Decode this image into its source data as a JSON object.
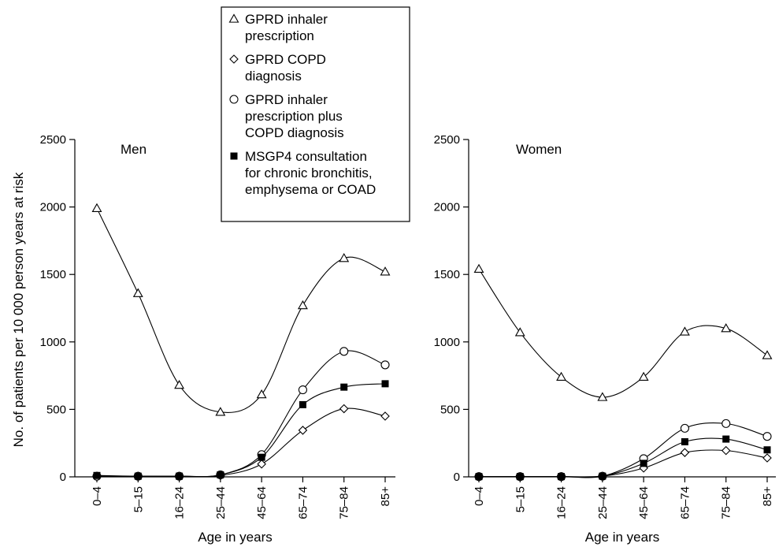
{
  "chart_data": {
    "type": "line",
    "ylabel": "No. of patients per 10 000 person years at risk",
    "xlabel": "Age in years",
    "categories": [
      "0–4",
      "5–15",
      "16–24",
      "25–44",
      "45–64",
      "65–74",
      "75–84",
      "85+"
    ],
    "ylim": [
      0,
      2500
    ],
    "yticks": [
      0,
      500,
      1000,
      1500,
      2000,
      2500
    ],
    "grid": false,
    "legend": {
      "placement": "top-center",
      "entries": [
        {
          "marker": "triangle-open",
          "lines": [
            "GPRD inhaler",
            "prescription"
          ]
        },
        {
          "marker": "diamond-open",
          "lines": [
            "GPRD COPD",
            "diagnosis"
          ]
        },
        {
          "marker": "circle-open",
          "lines": [
            "GPRD inhaler",
            "prescription plus",
            "COPD diagnosis"
          ]
        },
        {
          "marker": "square-filled",
          "lines": [
            "MSGP4 consultation",
            "for chronic bronchitis,",
            "emphysema or COAD"
          ]
        }
      ]
    },
    "panels": [
      {
        "title": "Men",
        "series": [
          {
            "marker": "triangle-open",
            "values": [
              1990,
              1360,
              680,
              480,
              610,
              1270,
              1620,
              1520
            ]
          },
          {
            "marker": "diamond-open",
            "values": [
              5,
              5,
              5,
              10,
              95,
              345,
              505,
              450
            ]
          },
          {
            "marker": "circle-open",
            "values": [
              5,
              5,
              5,
              15,
              165,
              645,
              930,
              830
            ]
          },
          {
            "marker": "square-filled",
            "values": [
              10,
              5,
              5,
              15,
              145,
              535,
              665,
              690
            ]
          }
        ]
      },
      {
        "title": "Women",
        "series": [
          {
            "marker": "triangle-open",
            "values": [
              1540,
              1070,
              740,
              590,
              740,
              1075,
              1100,
              900
            ]
          },
          {
            "marker": "diamond-open",
            "values": [
              2,
              2,
              2,
              5,
              65,
              180,
              195,
              140
            ]
          },
          {
            "marker": "circle-open",
            "values": [
              2,
              2,
              2,
              5,
              135,
              360,
              395,
              300
            ]
          },
          {
            "marker": "square-filled",
            "values": [
              2,
              2,
              2,
              5,
              100,
              260,
              280,
              200
            ]
          }
        ]
      }
    ]
  }
}
